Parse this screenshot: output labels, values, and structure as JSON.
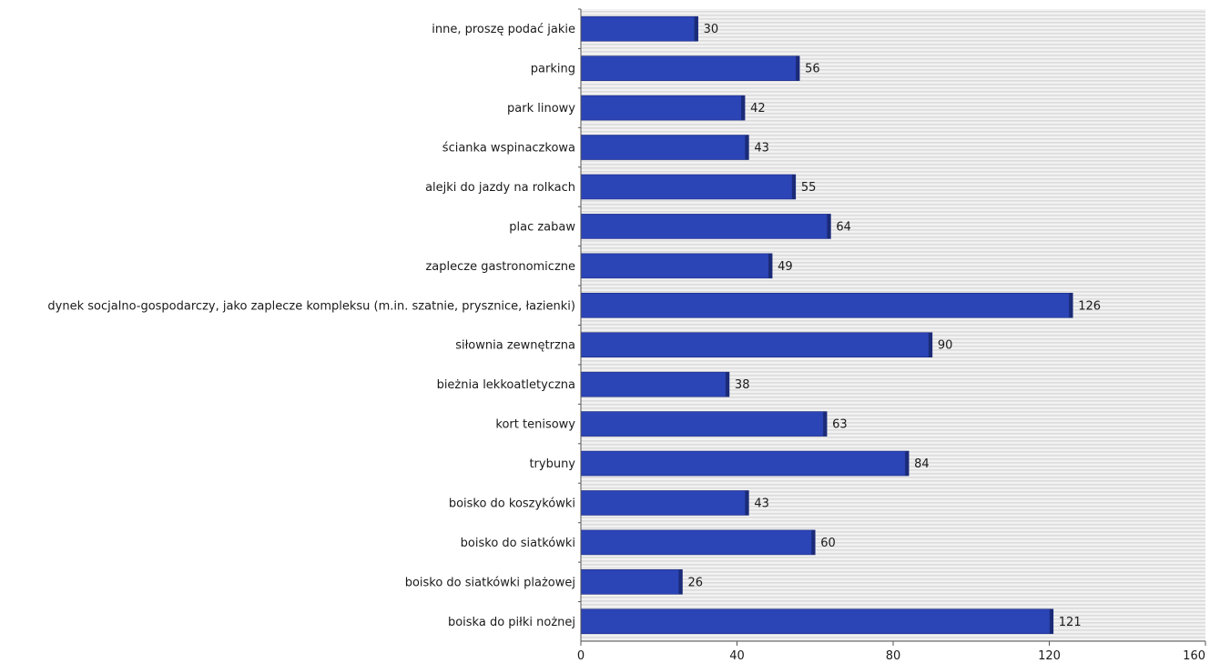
{
  "chart_data": {
    "type": "bar",
    "orientation": "horizontal",
    "categories": [
      "inne, proszę podać jakie",
      "parking",
      "park linowy",
      "ścianka wspinaczkowa",
      "alejki do jazdy na rolkach",
      "plac zabaw",
      "zaplecze gastronomiczne",
      "dynek socjalno-gospodarczy, jako zaplecze kompleksu (m.in. szatnie, prysznice, łazienki)",
      "siłownia zewnętrzna",
      "bieżnia lekkoatletyczna",
      "kort tenisowy",
      "trybuny",
      "boisko do koszykówki",
      "boisko do siatkówki",
      "boisko do siatkówki plażowej",
      "boiska do piłki nożnej"
    ],
    "values": [
      30,
      56,
      42,
      43,
      55,
      64,
      49,
      126,
      90,
      38,
      63,
      84,
      43,
      60,
      26,
      121
    ],
    "xlim": [
      0,
      160
    ],
    "xticks": [
      0,
      40,
      80,
      120,
      160
    ],
    "title": "",
    "xlabel": "",
    "ylabel": "",
    "grid": "horizontal striped background",
    "colors": {
      "bar": "#2b44b6",
      "bar_edge": "#1a2a80",
      "bar_shadow": "#1b2b77",
      "plot_bg": "#f2f2f2",
      "stripe": "#dcdcdc",
      "axis": "#555555"
    }
  }
}
